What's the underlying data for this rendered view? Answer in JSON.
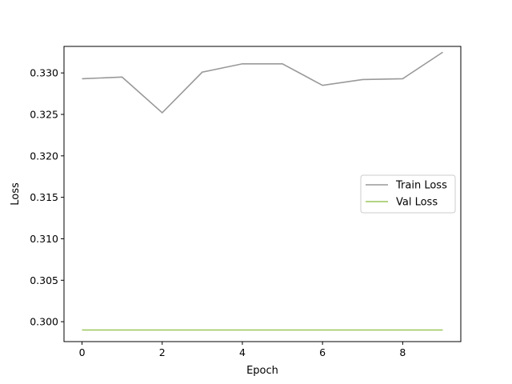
{
  "chart_data": {
    "type": "line",
    "title": "",
    "xlabel": "Epoch",
    "ylabel": "Loss",
    "x": [
      0,
      1,
      2,
      3,
      4,
      5,
      6,
      7,
      8,
      9
    ],
    "xlim": [
      -0.45,
      9.45
    ],
    "ylim": [
      0.2976,
      0.3332
    ],
    "xticks": [
      0,
      2,
      4,
      6,
      8
    ],
    "yticks": [
      0.3,
      0.305,
      0.31,
      0.315,
      0.32,
      0.325,
      0.33
    ],
    "xtick_labels": [
      "0",
      "2",
      "4",
      "6",
      "8"
    ],
    "ytick_labels": [
      "0.300",
      "0.305",
      "0.310",
      "0.315",
      "0.320",
      "0.325",
      "0.330"
    ],
    "grid": false,
    "legend_position": "center-right",
    "series": [
      {
        "name": "Train Loss",
        "color": "#999999",
        "values": [
          0.3293,
          0.3295,
          0.3252,
          0.3301,
          0.3311,
          0.3311,
          0.3285,
          0.3292,
          0.3293,
          0.3325
        ]
      },
      {
        "name": "Val Loss",
        "color": "#99c65a",
        "values": [
          0.299,
          0.299,
          0.299,
          0.299,
          0.299,
          0.299,
          0.299,
          0.299,
          0.299,
          0.299
        ]
      }
    ]
  }
}
